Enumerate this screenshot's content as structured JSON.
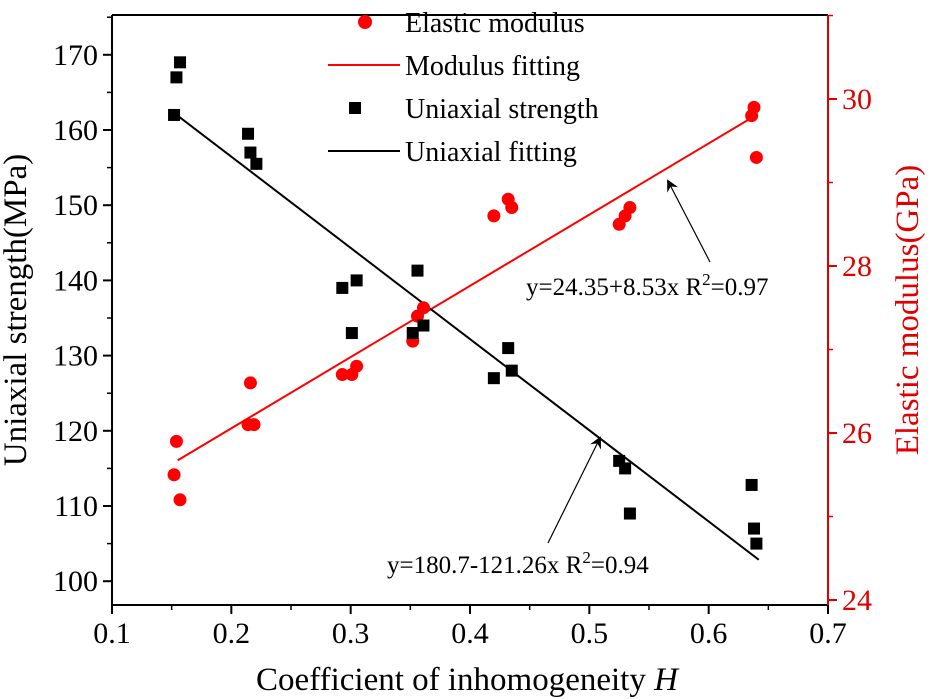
{
  "chart_data": {
    "type": "scatter",
    "xlabel": "Coefficient of inhomogeneity",
    "xlabel_italic": "H",
    "ylabel_left": "Uniaxial strength(MPa)",
    "ylabel_right": "Elastic modulus(GPa)",
    "xlim": [
      0.1,
      0.7
    ],
    "ylim_left": [
      97,
      175
    ],
    "ylim_right": [
      24,
      31
    ],
    "x_ticks": [
      "0.1",
      "0.2",
      "0.3",
      "0.4",
      "0.5",
      "0.6",
      "0.7"
    ],
    "y_left_ticks": [
      "100",
      "110",
      "120",
      "130",
      "140",
      "150",
      "160",
      "170"
    ],
    "y_right_ticks": [
      "24",
      "26",
      "28",
      "30"
    ],
    "series": [
      {
        "name": "Elastic modulus",
        "axis": "right",
        "marker": "circle",
        "color": "#ff0000",
        "points": [
          [
            0.152,
            25.5
          ],
          [
            0.154,
            25.9
          ],
          [
            0.157,
            25.2
          ],
          [
            0.214,
            26.1
          ],
          [
            0.216,
            26.6
          ],
          [
            0.219,
            26.1
          ],
          [
            0.293,
            26.7
          ],
          [
            0.301,
            26.7
          ],
          [
            0.305,
            26.8
          ],
          [
            0.352,
            27.1
          ],
          [
            0.356,
            27.4
          ],
          [
            0.361,
            27.5
          ],
          [
            0.42,
            28.6
          ],
          [
            0.432,
            28.8
          ],
          [
            0.435,
            28.7
          ],
          [
            0.525,
            28.5
          ],
          [
            0.53,
            28.6
          ],
          [
            0.534,
            28.7
          ],
          [
            0.636,
            29.8
          ],
          [
            0.638,
            29.9
          ],
          [
            0.64,
            29.3
          ]
        ]
      },
      {
        "name": "Modulus fitting",
        "axis": "right",
        "line": true,
        "color": "#ff0000",
        "x_range": [
          0.155,
          0.637
        ],
        "intercept": 24.35,
        "slope": 8.53
      },
      {
        "name": "Uniaxial strength",
        "axis": "left",
        "marker": "square",
        "color": "#000000",
        "points": [
          [
            0.152,
            162
          ],
          [
            0.154,
            167
          ],
          [
            0.157,
            169
          ],
          [
            0.214,
            159.5
          ],
          [
            0.216,
            157
          ],
          [
            0.221,
            155.5
          ],
          [
            0.293,
            139
          ],
          [
            0.301,
            133
          ],
          [
            0.305,
            140
          ],
          [
            0.352,
            133
          ],
          [
            0.356,
            141.3
          ],
          [
            0.361,
            134
          ],
          [
            0.42,
            127
          ],
          [
            0.432,
            131
          ],
          [
            0.435,
            128
          ],
          [
            0.525,
            116
          ],
          [
            0.53,
            115
          ],
          [
            0.534,
            109
          ],
          [
            0.636,
            112.8
          ],
          [
            0.638,
            107
          ],
          [
            0.64,
            105
          ]
        ]
      },
      {
        "name": "Uniaxial fitting",
        "axis": "left",
        "line": true,
        "color": "#000000",
        "x_range": [
          0.155,
          0.642
        ],
        "intercept": 180.7,
        "slope": -121.26
      }
    ],
    "legend": [
      {
        "label": "Elastic modulus",
        "kind": "circle",
        "color": "#ff0000"
      },
      {
        "label": "Modulus fitting",
        "kind": "line",
        "color": "#ff0000"
      },
      {
        "label": "Uniaxial strength",
        "kind": "square",
        "color": "#000000"
      },
      {
        "label": "Uniaxial fitting",
        "kind": "line",
        "color": "#000000"
      }
    ],
    "annotations": [
      {
        "name": "modulus-equation",
        "text": "y=24.35+8.53x R",
        "sup": "2",
        "tail": "=0.97",
        "target": "Modulus fitting"
      },
      {
        "name": "strength-equation",
        "text": "y=180.7-121.26x R",
        "sup": "2",
        "tail": "=0.94",
        "target": "Uniaxial fitting"
      }
    ]
  }
}
